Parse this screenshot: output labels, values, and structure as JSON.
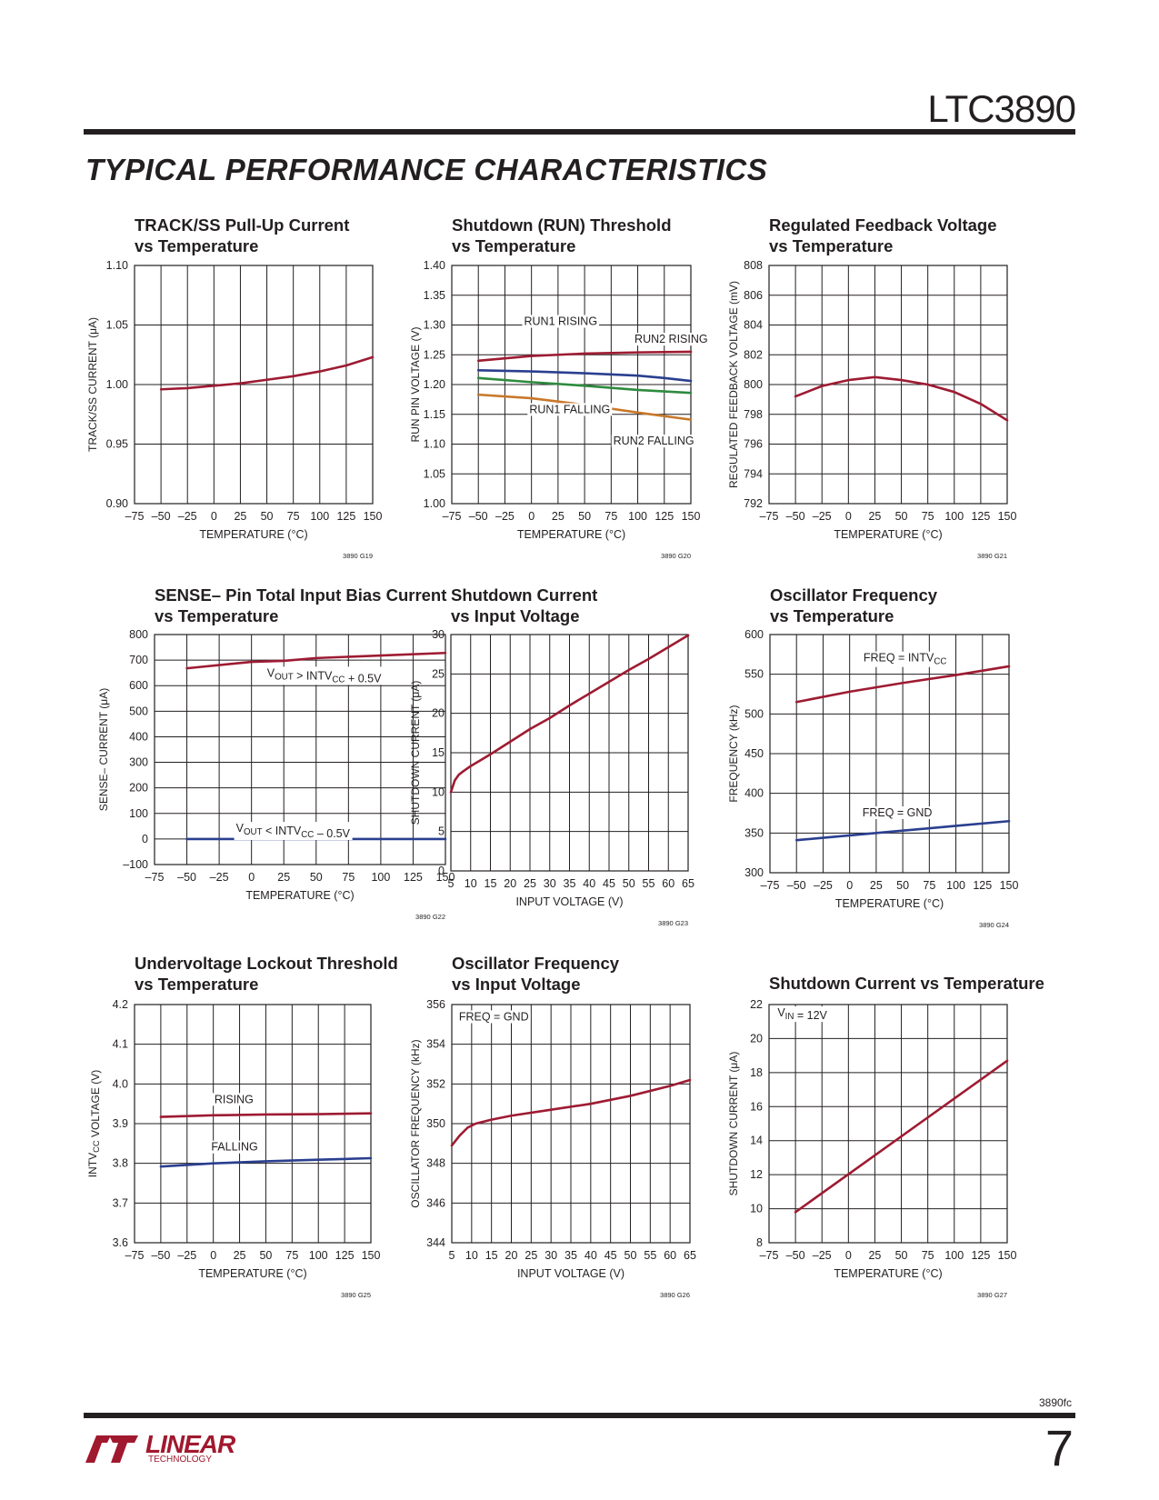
{
  "header": {
    "part_number": "LTC3890",
    "section_title": "TYPICAL PERFORMANCE CHARACTERISTICS"
  },
  "footer": {
    "doc_number": "3890fc",
    "page_number": "7",
    "logo_text": "LINEAR",
    "logo_subtext": "TECHNOLOGY"
  },
  "colors": {
    "red": "#9e1b32",
    "blue": "#2a3f8f",
    "green": "#2e8b3f",
    "orange": "#c8782a"
  },
  "chart_data": [
    {
      "type": "line",
      "title": [
        "TRACK/SS Pull-Up Current",
        "vs Temperature"
      ],
      "xlabel": "TEMPERATURE (°C)",
      "ylabel": "TRACK/SS CURRENT (μA)",
      "xlim": [
        -75,
        150
      ],
      "ylim": [
        0.9,
        1.1
      ],
      "xticks": [
        "–75",
        "–50",
        "–25",
        "0",
        "25",
        "50",
        "75",
        "100",
        "125",
        "150"
      ],
      "yticks": [
        "0.90",
        "0.95",
        "1.00",
        "1.05",
        "1.10"
      ],
      "series": [
        {
          "color": "red",
          "x": [
            -50,
            -25,
            0,
            25,
            50,
            75,
            100,
            125,
            150
          ],
          "y": [
            0.996,
            0.997,
            0.999,
            1.001,
            1.004,
            1.007,
            1.011,
            1.016,
            1.023
          ]
        }
      ],
      "labels": [],
      "fig_id": "3890 G19"
    },
    {
      "type": "line",
      "title": [
        "Shutdown (RUN) Threshold",
        "vs Temperature"
      ],
      "xlabel": "TEMPERATURE (°C)",
      "ylabel": "RUN PIN VOLTAGE (V)",
      "xlim": [
        -75,
        150
      ],
      "ylim": [
        1.0,
        1.4
      ],
      "xticks": [
        "–75",
        "–50",
        "–25",
        "0",
        "25",
        "50",
        "75",
        "100",
        "125",
        "150"
      ],
      "yticks": [
        "1.00",
        "1.05",
        "1.10",
        "1.15",
        "1.20",
        "1.25",
        "1.30",
        "1.35",
        "1.40"
      ],
      "series": [
        {
          "color": "red",
          "x": [
            -50,
            0,
            50,
            100,
            150
          ],
          "y": [
            1.24,
            1.248,
            1.252,
            1.254,
            1.255
          ]
        },
        {
          "color": "blue",
          "x": [
            -50,
            0,
            50,
            100,
            125,
            150
          ],
          "y": [
            1.224,
            1.222,
            1.219,
            1.215,
            1.211,
            1.206
          ]
        },
        {
          "color": "green",
          "x": [
            -50,
            0,
            50,
            100,
            150
          ],
          "y": [
            1.211,
            1.204,
            1.198,
            1.191,
            1.186
          ]
        },
        {
          "color": "orange",
          "x": [
            -50,
            0,
            50,
            100,
            150
          ],
          "y": [
            1.183,
            1.177,
            1.166,
            1.153,
            1.141
          ]
        }
      ],
      "labels": [
        {
          "text": "RUN1 RISING",
          "x": -7,
          "y": 1.3
        },
        {
          "text": "RUN2 RISING",
          "x": 97,
          "y": 1.27
        },
        {
          "text": "RUN1 FALLING",
          "x": -2,
          "y": 1.152
        },
        {
          "text": "RUN2 FALLING",
          "x": 77,
          "y": 1.099
        }
      ],
      "fig_id": "3890 G20"
    },
    {
      "type": "line",
      "title": [
        "Regulated Feedback Voltage",
        "vs Temperature"
      ],
      "xlabel": "TEMPERATURE (°C)",
      "ylabel": "REGULATED FEEDBACK VOLTAGE (mV)",
      "xlim": [
        -75,
        150
      ],
      "ylim": [
        792,
        808
      ],
      "xticks": [
        "–75",
        "–50",
        "–25",
        "0",
        "25",
        "50",
        "75",
        "100",
        "125",
        "150"
      ],
      "yticks": [
        "792",
        "794",
        "796",
        "798",
        "800",
        "802",
        "804",
        "806",
        "808"
      ],
      "series": [
        {
          "color": "red",
          "x": [
            -50,
            -25,
            0,
            25,
            50,
            75,
            100,
            125,
            150
          ],
          "y": [
            799.2,
            799.9,
            800.3,
            800.5,
            800.3,
            800.0,
            799.5,
            798.7,
            797.6
          ]
        }
      ],
      "labels": [],
      "fig_id": "3890 G21"
    },
    {
      "type": "line",
      "title": [
        "SENSE– Pin Total Input Bias Current",
        "vs Temperature"
      ],
      "xlabel": "TEMPERATURE (°C)",
      "ylabel": "SENSE– CURRENT (μA)",
      "xlim": [
        -75,
        150
      ],
      "ylim": [
        -100,
        800
      ],
      "xticks": [
        "–75",
        "–50",
        "–25",
        "0",
        "25",
        "50",
        "75",
        "100",
        "125",
        "150"
      ],
      "yticks": [
        "–100",
        "0",
        "100",
        "200",
        "300",
        "400",
        "500",
        "600",
        "700",
        "800"
      ],
      "series": [
        {
          "color": "red",
          "x": [
            -50,
            0,
            25,
            50,
            100,
            150
          ],
          "y": [
            668,
            693,
            697,
            708,
            718,
            728
          ]
        },
        {
          "color": "blue",
          "x": [
            -50,
            150
          ],
          "y": [
            0,
            0
          ]
        }
      ],
      "labels": [
        {
          "text": "VOUT > INTVCC + 0.5V",
          "x": 12,
          "y": 635
        },
        {
          "text": "VOUT < INTVCC – 0.5V",
          "x": -12,
          "y": 28
        }
      ],
      "fig_id": "3890 G22"
    },
    {
      "type": "line",
      "title": [
        "Shutdown Current",
        "vs Input Voltage"
      ],
      "xlabel": "INPUT VOLTAGE (V)",
      "ylabel": "SHUTDOWN CURRENT (μA)",
      "xlim": [
        5,
        65
      ],
      "ylim": [
        0,
        30
      ],
      "xticks": [
        "5",
        "10",
        "15",
        "20",
        "25",
        "30",
        "35",
        "40",
        "45",
        "50",
        "55",
        "60",
        "65"
      ],
      "yticks": [
        "0",
        "5",
        "10",
        "15",
        "20",
        "25",
        "30"
      ],
      "series": [
        {
          "color": "red",
          "x": [
            5,
            6,
            7,
            8,
            10,
            15,
            20,
            25,
            30,
            35,
            40,
            45,
            50,
            55,
            60,
            65
          ],
          "y": [
            10.0,
            11.5,
            12.2,
            12.6,
            13.3,
            14.8,
            16.4,
            18.0,
            19.4,
            21.0,
            22.5,
            24.0,
            25.5,
            26.9,
            28.4,
            29.9
          ]
        }
      ],
      "labels": [],
      "fig_id": "3890 G23"
    },
    {
      "type": "line",
      "title": [
        "Oscillator Frequency",
        "vs Temperature"
      ],
      "xlabel": "TEMPERATURE (°C)",
      "ylabel": "FREQUENCY (kHz)",
      "xlim": [
        -75,
        150
      ],
      "ylim": [
        300,
        600
      ],
      "xticks": [
        "–75",
        "–50",
        "–25",
        "0",
        "25",
        "50",
        "75",
        "100",
        "125",
        "150"
      ],
      "yticks": [
        "300",
        "350",
        "400",
        "450",
        "500",
        "550",
        "600"
      ],
      "series": [
        {
          "color": "red",
          "x": [
            -50,
            0,
            50,
            100,
            150
          ],
          "y": [
            515,
            528,
            539,
            549,
            560
          ]
        },
        {
          "color": "blue",
          "x": [
            -50,
            0,
            50,
            100,
            150
          ],
          "y": [
            341,
            347,
            353,
            359,
            365
          ]
        }
      ],
      "labels": [
        {
          "text": "FREQ = INTVCC",
          "x": 13,
          "y": 566
        },
        {
          "text": "FREQ = GND",
          "x": 12,
          "y": 371
        }
      ],
      "fig_id": "3890 G24"
    },
    {
      "type": "line",
      "title": [
        "Undervoltage Lockout Threshold",
        "vs Temperature"
      ],
      "xlabel": "TEMPERATURE (°C)",
      "ylabel": "INTVCC VOLTAGE (V)",
      "xlim": [
        -75,
        150
      ],
      "ylim": [
        3.6,
        4.2
      ],
      "xticks": [
        "–75",
        "–50",
        "–25",
        "0",
        "25",
        "50",
        "75",
        "100",
        "125",
        "150"
      ],
      "yticks": [
        "3.6",
        "3.7",
        "3.8",
        "3.9",
        "4.0",
        "4.1",
        "4.2"
      ],
      "series": [
        {
          "color": "red",
          "x": [
            -50,
            0,
            50,
            100,
            150
          ],
          "y": [
            3.917,
            3.921,
            3.923,
            3.924,
            3.926
          ]
        },
        {
          "color": "blue",
          "x": [
            -50,
            0,
            50,
            100,
            150
          ],
          "y": [
            3.792,
            3.8,
            3.805,
            3.809,
            3.813
          ]
        }
      ],
      "labels": [
        {
          "text": "RISING",
          "x": 1,
          "y": 3.952
        },
        {
          "text": "FALLING",
          "x": -2,
          "y": 3.832
        }
      ],
      "fig_id": "3890 G25"
    },
    {
      "type": "line",
      "title": [
        "Oscillator Frequency",
        "vs Input Voltage"
      ],
      "xlabel": "INPUT VOLTAGE (V)",
      "ylabel": "OSCILLATOR FREQUENCY (kHz)",
      "xlim": [
        5,
        65
      ],
      "ylim": [
        344,
        356
      ],
      "xticks": [
        "5",
        "10",
        "15",
        "20",
        "25",
        "30",
        "35",
        "40",
        "45",
        "50",
        "55",
        "60",
        "65"
      ],
      "yticks": [
        "344",
        "346",
        "348",
        "350",
        "352",
        "354",
        "356"
      ],
      "series": [
        {
          "color": "red",
          "x": [
            5,
            7,
            9,
            11,
            15,
            20,
            30,
            40,
            50,
            60,
            65
          ],
          "y": [
            348.9,
            349.4,
            349.8,
            350.0,
            350.2,
            350.4,
            350.7,
            351.0,
            351.4,
            351.9,
            352.2
          ]
        }
      ],
      "labels": [
        {
          "text": "FREQ = GND",
          "x": 6.8,
          "y": 355.2
        }
      ],
      "fig_id": "3890 G26"
    },
    {
      "type": "line",
      "title": [
        "Shutdown Current vs Temperature"
      ],
      "xlabel": "TEMPERATURE (°C)",
      "ylabel": "SHUTDOWN CURRENT (μA)",
      "xlim": [
        -75,
        150
      ],
      "ylim": [
        8,
        22
      ],
      "xticks": [
        "–75",
        "–50",
        "–25",
        "0",
        "25",
        "50",
        "75",
        "100",
        "125",
        "150"
      ],
      "yticks": [
        "8",
        "10",
        "12",
        "14",
        "16",
        "18",
        "20",
        "22"
      ],
      "series": [
        {
          "color": "red",
          "x": [
            -50,
            150
          ],
          "y": [
            9.8,
            18.7
          ]
        }
      ],
      "labels": [
        {
          "text": "VIN = 12V",
          "x": -67,
          "y": 21.3
        }
      ],
      "fig_id": "3890 G27"
    }
  ]
}
